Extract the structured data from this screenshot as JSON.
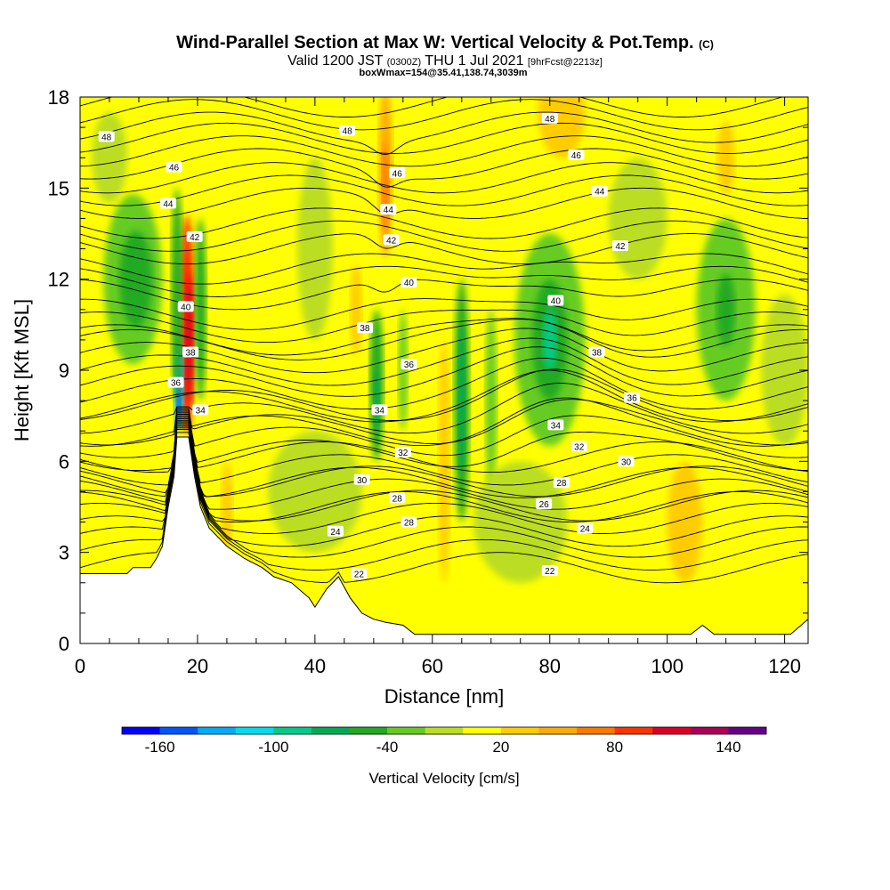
{
  "header": {
    "title_main": "Wind-Parallel Section at Max W: Vertical Velocity & Pot.Temp.",
    "title_copyright": "(C)",
    "valid_prefix": "Valid 1200 JST",
    "valid_utc": "(0300Z)",
    "valid_date": "THU 1 Jul 2021",
    "forecast_info": "[9hrFcst@2213z]",
    "box_info": "boxWmax=154@35.41,138.74,3039m"
  },
  "chart_data": {
    "type": "heatmap",
    "xlabel": "Distance [nm]",
    "ylabel": "Height [Kft MSL]",
    "xlim": [
      0,
      124
    ],
    "ylim": [
      0,
      18
    ],
    "xticks": [
      0,
      20,
      40,
      60,
      80,
      100,
      120
    ],
    "yticks": [
      0,
      3,
      6,
      9,
      12,
      15,
      18
    ],
    "colorbar": {
      "label": "Vertical Velocity [cm/s]",
      "tick_values": [
        -160,
        -100,
        -40,
        20,
        80,
        140
      ],
      "levels": [
        -180,
        -160,
        -140,
        -120,
        -100,
        -80,
        -60,
        -40,
        -20,
        0,
        20,
        40,
        60,
        80,
        100,
        120,
        140,
        160
      ],
      "colors": [
        "#0000ff",
        "#0055ff",
        "#00aaff",
        "#00ddee",
        "#00cc88",
        "#00aa55",
        "#22aa22",
        "#66cc22",
        "#bbdd22",
        "#ffff00",
        "#ffcc00",
        "#ffaa00",
        "#ff7700",
        "#ff3300",
        "#dd0022",
        "#aa0055",
        "#660088"
      ]
    },
    "background_value_color": "#ffff00",
    "velocity_features": [
      {
        "x": 18.2,
        "y": 10.5,
        "rx": 1.3,
        "ry": 3.6,
        "color": "#ff3300"
      },
      {
        "x": 18.6,
        "y": 10.0,
        "rx": 0.7,
        "ry": 2.2,
        "color": "#dd0022"
      },
      {
        "x": 16.8,
        "y": 8.5,
        "rx": 0.8,
        "ry": 1.5,
        "color": "#00aaff"
      },
      {
        "x": 16.8,
        "y": 8.0,
        "rx": 0.4,
        "ry": 0.8,
        "color": "#0055ff"
      },
      {
        "x": 16.5,
        "y": 11.5,
        "rx": 1.0,
        "ry": 3.5,
        "color": "#22aa22"
      },
      {
        "x": 20.5,
        "y": 11.0,
        "rx": 1.0,
        "ry": 3.0,
        "color": "#22aa22"
      },
      {
        "x": 9.0,
        "y": 12.0,
        "rx": 5.0,
        "ry": 2.8,
        "color": "#66cc22"
      },
      {
        "x": 9.5,
        "y": 12.0,
        "rx": 2.8,
        "ry": 1.6,
        "color": "#22aa22"
      },
      {
        "x": 52.0,
        "y": 15.5,
        "rx": 1.2,
        "ry": 2.8,
        "color": "#ffaa00"
      },
      {
        "x": 52.0,
        "y": 15.0,
        "rx": 0.6,
        "ry": 1.5,
        "color": "#ff7700"
      },
      {
        "x": 50.5,
        "y": 8.5,
        "rx": 1.2,
        "ry": 2.5,
        "color": "#22aa22"
      },
      {
        "x": 50.5,
        "y": 8.0,
        "rx": 0.5,
        "ry": 1.0,
        "color": "#00aa55"
      },
      {
        "x": 65.0,
        "y": 8.0,
        "rx": 1.3,
        "ry": 4.0,
        "color": "#22aa22"
      },
      {
        "x": 65.0,
        "y": 8.0,
        "rx": 0.6,
        "ry": 2.5,
        "color": "#00aa55"
      },
      {
        "x": 62.0,
        "y": 6.0,
        "rx": 1.0,
        "ry": 4.0,
        "color": "#ffcc00"
      },
      {
        "x": 55.0,
        "y": 9.0,
        "rx": 0.8,
        "ry": 2.0,
        "color": "#66cc22"
      },
      {
        "x": 70.0,
        "y": 8.0,
        "rx": 1.0,
        "ry": 3.0,
        "color": "#66cc22"
      },
      {
        "x": 80.0,
        "y": 10.0,
        "rx": 6.0,
        "ry": 3.5,
        "color": "#66cc22"
      },
      {
        "x": 80.0,
        "y": 10.0,
        "rx": 3.0,
        "ry": 2.0,
        "color": "#22aa22"
      },
      {
        "x": 80.0,
        "y": 10.0,
        "rx": 1.2,
        "ry": 1.0,
        "color": "#00cc88"
      },
      {
        "x": 110.0,
        "y": 11.0,
        "rx": 5.0,
        "ry": 3.0,
        "color": "#66cc22"
      },
      {
        "x": 110.0,
        "y": 11.0,
        "rx": 1.6,
        "ry": 1.2,
        "color": "#22aa22"
      },
      {
        "x": 82.0,
        "y": 17.5,
        "rx": 4.0,
        "ry": 1.5,
        "color": "#ffcc00"
      },
      {
        "x": 103.0,
        "y": 4.0,
        "rx": 3.0,
        "ry": 2.0,
        "color": "#ffcc00"
      },
      {
        "x": 25.0,
        "y": 4.5,
        "rx": 1.0,
        "ry": 1.5,
        "color": "#ffcc00"
      },
      {
        "x": 47.0,
        "y": 11.0,
        "rx": 1.0,
        "ry": 1.5,
        "color": "#ffcc00"
      },
      {
        "x": 110.0,
        "y": 16.0,
        "rx": 1.5,
        "ry": 1.2,
        "color": "#ffcc00"
      },
      {
        "x": 5.0,
        "y": 16.0,
        "rx": 3.0,
        "ry": 1.5,
        "color": "#bbdd22"
      },
      {
        "x": 40.0,
        "y": 13.0,
        "rx": 3.0,
        "ry": 3.0,
        "color": "#bbdd22"
      },
      {
        "x": 95.0,
        "y": 14.0,
        "rx": 5.0,
        "ry": 2.0,
        "color": "#bbdd22"
      },
      {
        "x": 120.0,
        "y": 9.0,
        "rx": 4.0,
        "ry": 2.5,
        "color": "#bbdd22"
      },
      {
        "x": 40.0,
        "y": 5.0,
        "rx": 8.0,
        "ry": 2.0,
        "color": "#bbdd22"
      },
      {
        "x": 75.0,
        "y": 4.0,
        "rx": 8.0,
        "ry": 2.0,
        "color": "#bbdd22"
      }
    ],
    "terrain_profile": [
      [
        0,
        2.3
      ],
      [
        8,
        2.3
      ],
      [
        9,
        2.5
      ],
      [
        12,
        2.5
      ],
      [
        13,
        2.8
      ],
      [
        14,
        3.2
      ],
      [
        15,
        4.5
      ],
      [
        16,
        5.5
      ],
      [
        16.5,
        6.8
      ],
      [
        18.5,
        6.8
      ],
      [
        19.5,
        5.5
      ],
      [
        20.5,
        4.5
      ],
      [
        22,
        3.8
      ],
      [
        25,
        3.2
      ],
      [
        28,
        2.8
      ],
      [
        31,
        2.5
      ],
      [
        33,
        2.2
      ],
      [
        36,
        2.0
      ],
      [
        39,
        1.5
      ],
      [
        40,
        1.2
      ],
      [
        42,
        1.8
      ],
      [
        44,
        2.2
      ],
      [
        46,
        1.5
      ],
      [
        48,
        1.0
      ],
      [
        50,
        0.8
      ],
      [
        52,
        0.7
      ],
      [
        55,
        0.6
      ],
      [
        57,
        0.3
      ],
      [
        60,
        0.3
      ],
      [
        70,
        0.3
      ],
      [
        80,
        0.3
      ],
      [
        90,
        0.3
      ],
      [
        100,
        0.3
      ],
      [
        104,
        0.3
      ],
      [
        106,
        0.6
      ],
      [
        108,
        0.3
      ],
      [
        118,
        0.3
      ],
      [
        121,
        0.3
      ],
      [
        124,
        0.8
      ]
    ],
    "isentropes": [
      {
        "value": 22,
        "y": 2.5
      },
      {
        "value": 24,
        "y": 3.7
      },
      {
        "value": 26,
        "y": 4.5
      },
      {
        "value": 28,
        "y": 5.3
      },
      {
        "value": 30,
        "y": 6.2
      },
      {
        "value": 32,
        "y": 7.0
      },
      {
        "value": 34,
        "y": 7.8
      },
      {
        "value": 36,
        "y": 9.0
      },
      {
        "value": 38,
        "y": 10.0
      },
      {
        "value": 40,
        "y": 11.5
      },
      {
        "value": 42,
        "y": 13.0
      },
      {
        "value": 44,
        "y": 14.5
      },
      {
        "value": 46,
        "y": 15.8
      },
      {
        "value": 48,
        "y": 17.0
      }
    ],
    "contour_labels": [
      {
        "text": "48",
        "x": 4.5,
        "y": 16.7
      },
      {
        "text": "46",
        "x": 16.0,
        "y": 15.7
      },
      {
        "text": "44",
        "x": 15.0,
        "y": 14.5
      },
      {
        "text": "42",
        "x": 19.5,
        "y": 13.4
      },
      {
        "text": "40",
        "x": 18.0,
        "y": 11.1
      },
      {
        "text": "38",
        "x": 18.8,
        "y": 9.6
      },
      {
        "text": "36",
        "x": 16.3,
        "y": 8.6
      },
      {
        "text": "34",
        "x": 20.5,
        "y": 7.7
      },
      {
        "text": "48",
        "x": 45.5,
        "y": 16.9
      },
      {
        "text": "46",
        "x": 54.0,
        "y": 15.5
      },
      {
        "text": "44",
        "x": 52.5,
        "y": 14.3
      },
      {
        "text": "42",
        "x": 53.0,
        "y": 13.3
      },
      {
        "text": "40",
        "x": 56.0,
        "y": 11.9
      },
      {
        "text": "38",
        "x": 48.5,
        "y": 10.4
      },
      {
        "text": "36",
        "x": 56.0,
        "y": 9.2
      },
      {
        "text": "34",
        "x": 51.0,
        "y": 7.7
      },
      {
        "text": "32",
        "x": 55.0,
        "y": 6.3
      },
      {
        "text": "30",
        "x": 48.0,
        "y": 5.4
      },
      {
        "text": "28",
        "x": 54.0,
        "y": 4.8
      },
      {
        "text": "28",
        "x": 56.0,
        "y": 4.0
      },
      {
        "text": "24",
        "x": 43.5,
        "y": 3.7
      },
      {
        "text": "22",
        "x": 47.5,
        "y": 2.3
      },
      {
        "text": "48",
        "x": 80.0,
        "y": 17.3
      },
      {
        "text": "46",
        "x": 84.5,
        "y": 16.1
      },
      {
        "text": "44",
        "x": 88.5,
        "y": 14.9
      },
      {
        "text": "42",
        "x": 92.0,
        "y": 13.1
      },
      {
        "text": "40",
        "x": 81.0,
        "y": 11.3
      },
      {
        "text": "38",
        "x": 88.0,
        "y": 9.6
      },
      {
        "text": "36",
        "x": 94.0,
        "y": 8.1
      },
      {
        "text": "34",
        "x": 81.0,
        "y": 7.2
      },
      {
        "text": "32",
        "x": 85.0,
        "y": 6.5
      },
      {
        "text": "30",
        "x": 93.0,
        "y": 6.0
      },
      {
        "text": "28",
        "x": 82.0,
        "y": 5.3
      },
      {
        "text": "26",
        "x": 79.0,
        "y": 4.6
      },
      {
        "text": "24",
        "x": 86.0,
        "y": 3.8
      },
      {
        "text": "22",
        "x": 80.0,
        "y": 2.4
      }
    ]
  }
}
